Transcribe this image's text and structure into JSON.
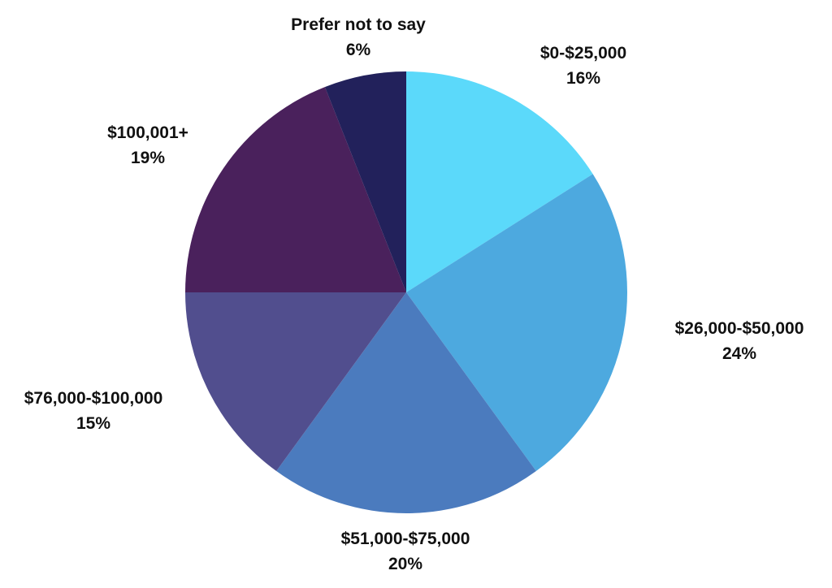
{
  "chart_data": {
    "type": "pie",
    "title": "",
    "start_angle": "top",
    "direction": "clockwise",
    "slices": [
      {
        "label": "$0-$25,000",
        "value": 16,
        "value_label": "16%",
        "color": "#5BD9FA"
      },
      {
        "label": "$26,000-$50,000",
        "value": 24,
        "value_label": "24%",
        "color": "#4DA9DF"
      },
      {
        "label": "$51,000-$75,000",
        "value": 20,
        "value_label": "20%",
        "color": "#4B7BBE"
      },
      {
        "label": "$76,000-$100,000",
        "value": 15,
        "value_label": "15%",
        "color": "#514E8E"
      },
      {
        "label": "$100,001+",
        "value": 19,
        "value_label": "19%",
        "color": "#4A215C"
      },
      {
        "label": "Prefer not to say",
        "value": 6,
        "value_label": "6%",
        "color": "#22215B"
      }
    ]
  }
}
